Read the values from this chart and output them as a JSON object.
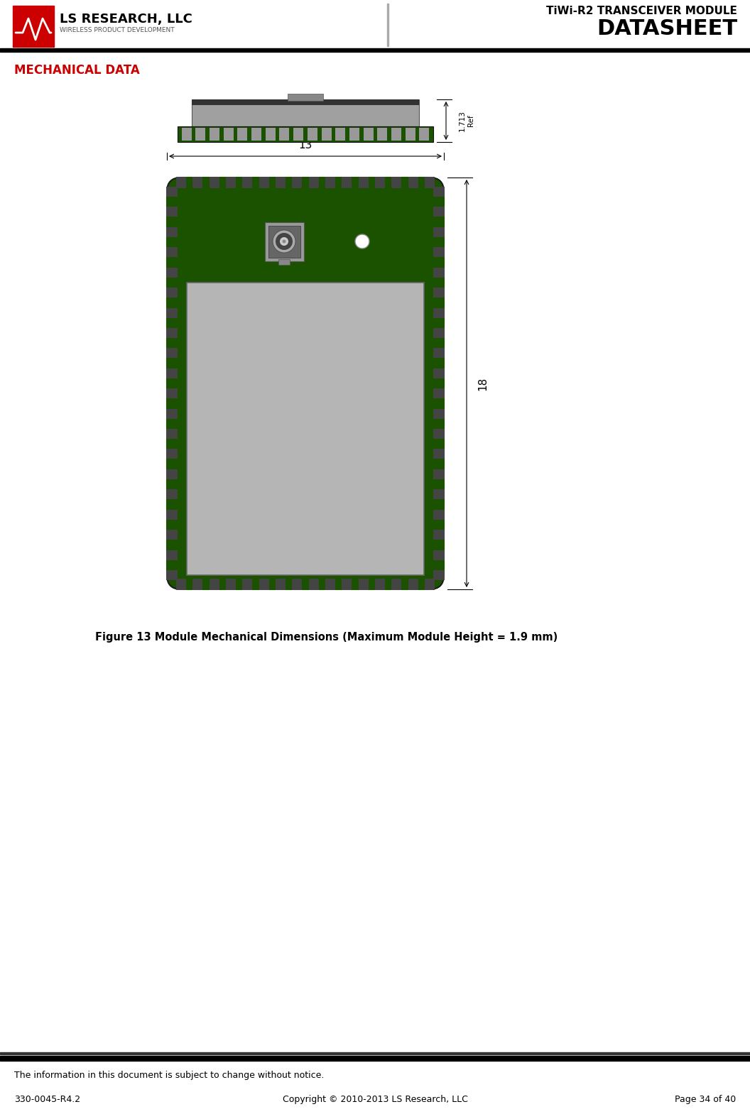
{
  "page_width": 10.56,
  "page_height": 15.76,
  "bg_color": "#ffffff",
  "logo_text_main": "LS RESEARCH, LLC",
  "logo_text_sub": "WIRELESS PRODUCT DEVELOPMENT",
  "title_line1": "TiWi-R2 TRANSCEIVER MODULE",
  "title_line2": "DATASHEET",
  "section_title": "MECHANICAL DATA",
  "section_title_color": "#cc0000",
  "figure_caption": "Figure 13 Module Mechanical Dimensions (Maximum Module Height = 1.9 mm)",
  "dim_label_13": "13",
  "dim_label_18": "18",
  "dim_label_ref": "1.713",
  "dim_label_ref2": "Ref",
  "footer_line1": "The information in this document is subject to change without notice.",
  "footer_left": "330-0045-R4.2",
  "footer_center": "Copyright © 2010-2013 LS Research, LLC",
  "footer_right": "Page 34 of 40",
  "green_color": "#1a5200",
  "dark_green": "#143d00",
  "dark_gray": "#555555",
  "mid_gray": "#888888",
  "light_gray": "#aaaaaa",
  "silver_gray": "#b8b8b8",
  "connector_gray": "#777777",
  "pcb_border": "#333333",
  "tooth_color": "#2a2a2a"
}
